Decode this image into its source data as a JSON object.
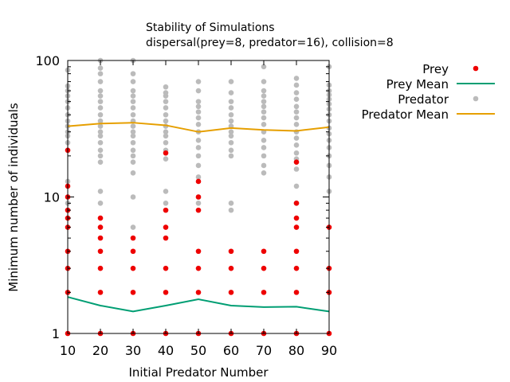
{
  "chart_data": {
    "type": "scatter",
    "title": "Stability of Simulations",
    "subtitle": "dispersal(prey=8, predator=16), collision=8",
    "xlabel": "Initial Predator Number",
    "ylabel": "Minimum number of individuals",
    "xlim": [
      10,
      90
    ],
    "ylim": [
      1,
      100
    ],
    "y_scale": "log",
    "x_ticks": [
      "10",
      "20",
      "30",
      "40",
      "50",
      "60",
      "70",
      "80",
      "90"
    ],
    "y_ticks": [
      "1",
      "10",
      "100"
    ],
    "grid": false,
    "legend_position": "outside-right",
    "colors": {
      "prey": "#ee0000",
      "prey_mean": "#009e73",
      "predator": "#bbbbbb",
      "predator_mean": "#e69f00"
    },
    "series": [
      {
        "name": "Prey",
        "style": "points",
        "points": [
          [
            10,
            1
          ],
          [
            10,
            2
          ],
          [
            10,
            3
          ],
          [
            10,
            4
          ],
          [
            10,
            6
          ],
          [
            10,
            7
          ],
          [
            10,
            8
          ],
          [
            10,
            10
          ],
          [
            10,
            12
          ],
          [
            10,
            22
          ],
          [
            20,
            1
          ],
          [
            20,
            2
          ],
          [
            20,
            3
          ],
          [
            20,
            4
          ],
          [
            20,
            5
          ],
          [
            20,
            6
          ],
          [
            20,
            7
          ],
          [
            30,
            1
          ],
          [
            30,
            2
          ],
          [
            30,
            3
          ],
          [
            30,
            4
          ],
          [
            30,
            5
          ],
          [
            40,
            1
          ],
          [
            40,
            2
          ],
          [
            40,
            3
          ],
          [
            40,
            5
          ],
          [
            40,
            6
          ],
          [
            40,
            8
          ],
          [
            40,
            21
          ],
          [
            50,
            1
          ],
          [
            50,
            2
          ],
          [
            50,
            3
          ],
          [
            50,
            4
          ],
          [
            50,
            8
          ],
          [
            50,
            10
          ],
          [
            50,
            13
          ],
          [
            60,
            1
          ],
          [
            60,
            2
          ],
          [
            60,
            3
          ],
          [
            60,
            4
          ],
          [
            70,
            1
          ],
          [
            70,
            2
          ],
          [
            70,
            3
          ],
          [
            70,
            4
          ],
          [
            80,
            1
          ],
          [
            80,
            2
          ],
          [
            80,
            3
          ],
          [
            80,
            4
          ],
          [
            80,
            6
          ],
          [
            80,
            7
          ],
          [
            80,
            9
          ],
          [
            80,
            18
          ],
          [
            90,
            1
          ],
          [
            90,
            2
          ],
          [
            90,
            3
          ],
          [
            90,
            6
          ]
        ]
      },
      {
        "name": "Prey Mean",
        "style": "line",
        "x": [
          10,
          20,
          30,
          40,
          50,
          60,
          70,
          80,
          90
        ],
        "values": [
          1.85,
          1.6,
          1.45,
          1.6,
          1.78,
          1.6,
          1.56,
          1.57,
          1.45
        ]
      },
      {
        "name": "Predator",
        "style": "points",
        "points": [
          [
            10,
            9
          ],
          [
            10,
            13
          ],
          [
            10,
            22
          ],
          [
            10,
            25
          ],
          [
            10,
            28
          ],
          [
            10,
            30
          ],
          [
            10,
            33
          ],
          [
            10,
            36
          ],
          [
            10,
            40
          ],
          [
            10,
            45
          ],
          [
            10,
            50
          ],
          [
            10,
            55
          ],
          [
            10,
            60
          ],
          [
            10,
            65
          ],
          [
            10,
            85
          ],
          [
            20,
            9
          ],
          [
            20,
            11
          ],
          [
            20,
            18
          ],
          [
            20,
            20
          ],
          [
            20,
            22
          ],
          [
            20,
            25
          ],
          [
            20,
            28
          ],
          [
            20,
            30
          ],
          [
            20,
            33
          ],
          [
            20,
            36
          ],
          [
            20,
            40
          ],
          [
            20,
            45
          ],
          [
            20,
            50
          ],
          [
            20,
            55
          ],
          [
            20,
            60
          ],
          [
            20,
            70
          ],
          [
            20,
            80
          ],
          [
            20,
            88
          ],
          [
            20,
            100
          ],
          [
            30,
            6
          ],
          [
            30,
            10
          ],
          [
            30,
            15
          ],
          [
            30,
            18
          ],
          [
            30,
            20
          ],
          [
            30,
            22
          ],
          [
            30,
            25
          ],
          [
            30,
            28
          ],
          [
            30,
            30
          ],
          [
            30,
            33
          ],
          [
            30,
            36
          ],
          [
            30,
            40
          ],
          [
            30,
            45
          ],
          [
            30,
            50
          ],
          [
            30,
            55
          ],
          [
            30,
            60
          ],
          [
            30,
            70
          ],
          [
            30,
            80
          ],
          [
            30,
            100
          ],
          [
            40,
            9
          ],
          [
            40,
            11
          ],
          [
            40,
            19
          ],
          [
            40,
            22
          ],
          [
            40,
            25
          ],
          [
            40,
            28
          ],
          [
            40,
            30
          ],
          [
            40,
            33
          ],
          [
            40,
            36
          ],
          [
            40,
            40
          ],
          [
            40,
            45
          ],
          [
            40,
            50
          ],
          [
            40,
            55
          ],
          [
            40,
            58
          ],
          [
            40,
            64
          ],
          [
            50,
            9
          ],
          [
            50,
            10
          ],
          [
            50,
            14
          ],
          [
            50,
            17
          ],
          [
            50,
            20
          ],
          [
            50,
            23
          ],
          [
            50,
            26
          ],
          [
            50,
            30
          ],
          [
            50,
            34
          ],
          [
            50,
            38
          ],
          [
            50,
            42
          ],
          [
            50,
            46
          ],
          [
            50,
            50
          ],
          [
            50,
            60
          ],
          [
            50,
            70
          ],
          [
            60,
            8
          ],
          [
            60,
            9
          ],
          [
            60,
            20
          ],
          [
            60,
            22
          ],
          [
            60,
            25
          ],
          [
            60,
            28
          ],
          [
            60,
            30
          ],
          [
            60,
            33
          ],
          [
            60,
            36
          ],
          [
            60,
            40
          ],
          [
            60,
            45
          ],
          [
            60,
            50
          ],
          [
            60,
            58
          ],
          [
            60,
            70
          ],
          [
            70,
            15
          ],
          [
            70,
            17
          ],
          [
            70,
            20
          ],
          [
            70,
            23
          ],
          [
            70,
            26
          ],
          [
            70,
            30
          ],
          [
            70,
            34
          ],
          [
            70,
            38
          ],
          [
            70,
            42
          ],
          [
            70,
            46
          ],
          [
            70,
            50
          ],
          [
            70,
            55
          ],
          [
            70,
            60
          ],
          [
            70,
            70
          ],
          [
            70,
            90
          ],
          [
            80,
            9
          ],
          [
            80,
            12
          ],
          [
            80,
            16
          ],
          [
            80,
            19
          ],
          [
            80,
            21
          ],
          [
            80,
            24
          ],
          [
            80,
            27
          ],
          [
            80,
            30
          ],
          [
            80,
            34
          ],
          [
            80,
            38
          ],
          [
            80,
            42
          ],
          [
            80,
            46
          ],
          [
            80,
            52
          ],
          [
            80,
            58
          ],
          [
            80,
            66
          ],
          [
            80,
            74
          ],
          [
            90,
            11
          ],
          [
            90,
            14
          ],
          [
            90,
            17
          ],
          [
            90,
            20
          ],
          [
            90,
            23
          ],
          [
            90,
            26
          ],
          [
            90,
            29
          ],
          [
            90,
            32
          ],
          [
            90,
            36
          ],
          [
            90,
            40
          ],
          [
            90,
            44
          ],
          [
            90,
            48
          ],
          [
            90,
            52
          ],
          [
            90,
            56
          ],
          [
            90,
            60
          ],
          [
            90,
            66
          ],
          [
            90,
            90
          ]
        ]
      },
      {
        "name": "Predator Mean",
        "style": "line",
        "x": [
          10,
          20,
          30,
          40,
          50,
          60,
          70,
          80,
          90
        ],
        "values": [
          33,
          34.5,
          35,
          33.5,
          30,
          32,
          31,
          30.5,
          32.5
        ]
      }
    ]
  }
}
